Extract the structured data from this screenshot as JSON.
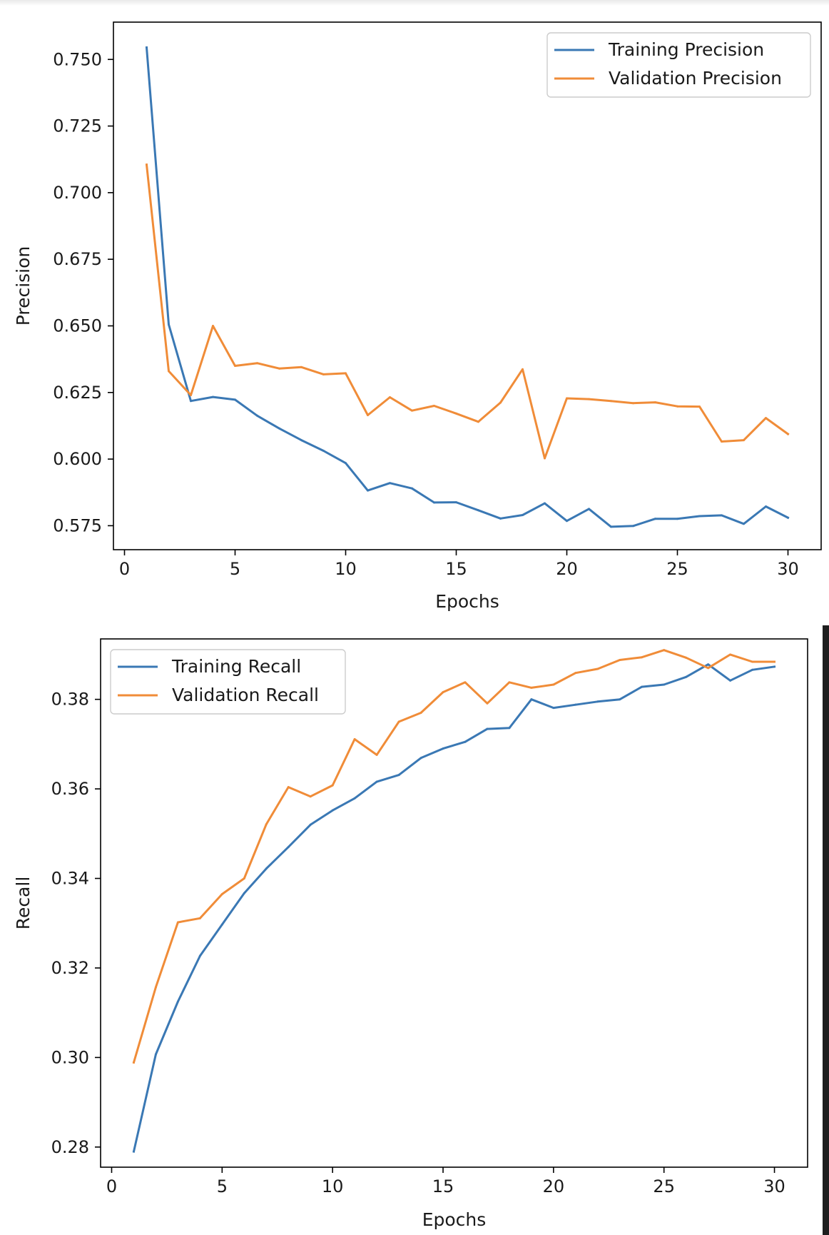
{
  "chart_data": [
    {
      "type": "line",
      "title": "",
      "xlabel": "Epochs",
      "ylabel": "Precision",
      "xlim": [
        -0.5,
        31.5
      ],
      "ylim": [
        0.566,
        0.764
      ],
      "xticks": [
        0,
        5,
        10,
        15,
        20,
        25,
        30
      ],
      "xtick_labels": [
        "0",
        "5",
        "10",
        "15",
        "20",
        "25",
        "30"
      ],
      "yticks": [
        0.575,
        0.6,
        0.625,
        0.65,
        0.675,
        0.7,
        0.725,
        0.75
      ],
      "ytick_labels": [
        "0.575",
        "0.600",
        "0.625",
        "0.650",
        "0.675",
        "0.700",
        "0.725",
        "0.750"
      ],
      "grid": false,
      "legend_position": "top-right",
      "x": [
        1,
        2,
        3,
        4,
        5,
        6,
        7,
        8,
        9,
        10,
        11,
        12,
        13,
        14,
        15,
        16,
        17,
        18,
        19,
        20,
        21,
        22,
        23,
        24,
        25,
        26,
        27,
        28,
        29,
        30
      ],
      "series": [
        {
          "name": "Training Precision",
          "color": "#3a78b4",
          "values": [
            0.7545,
            0.6505,
            0.6218,
            0.6233,
            0.6223,
            0.6163,
            0.6115,
            0.6071,
            0.6031,
            0.5985,
            0.5882,
            0.591,
            0.589,
            0.5837,
            0.5838,
            0.5808,
            0.5777,
            0.579,
            0.5834,
            0.5768,
            0.5813,
            0.5746,
            0.5749,
            0.5776,
            0.5776,
            0.5786,
            0.5789,
            0.5757,
            0.5822,
            0.578
          ]
        },
        {
          "name": "Validation Precision",
          "color": "#f08c38",
          "values": [
            0.7105,
            0.633,
            0.624,
            0.65,
            0.635,
            0.636,
            0.634,
            0.6345,
            0.6318,
            0.6322,
            0.6165,
            0.6232,
            0.6182,
            0.62,
            0.6171,
            0.614,
            0.6212,
            0.6337,
            0.6003,
            0.6228,
            0.6225,
            0.6218,
            0.621,
            0.6213,
            0.6198,
            0.6197,
            0.6066,
            0.6071,
            0.6154,
            0.6094
          ]
        }
      ]
    },
    {
      "type": "line",
      "title": "",
      "xlabel": "Epochs",
      "ylabel": "Recall",
      "xlim": [
        -0.5,
        31.5
      ],
      "ylim": [
        0.2755,
        0.3935
      ],
      "xticks": [
        0,
        5,
        10,
        15,
        20,
        25,
        30
      ],
      "xtick_labels": [
        "0",
        "5",
        "10",
        "15",
        "20",
        "25",
        "30"
      ],
      "yticks": [
        0.28,
        0.3,
        0.32,
        0.34,
        0.36,
        0.38
      ],
      "ytick_labels": [
        "0.28",
        "0.30",
        "0.32",
        "0.34",
        "0.36",
        "0.38"
      ],
      "grid": false,
      "legend_position": "top-left",
      "x": [
        1,
        2,
        3,
        4,
        5,
        6,
        7,
        8,
        9,
        10,
        11,
        12,
        13,
        14,
        15,
        16,
        17,
        18,
        19,
        20,
        21,
        22,
        23,
        24,
        25,
        26,
        27,
        28,
        29,
        30
      ],
      "series": [
        {
          "name": "Training Recall",
          "color": "#3a78b4",
          "values": [
            0.279,
            0.3007,
            0.3125,
            0.3227,
            0.3297,
            0.3367,
            0.3422,
            0.347,
            0.352,
            0.3552,
            0.3579,
            0.3616,
            0.3631,
            0.3669,
            0.369,
            0.3705,
            0.3734,
            0.3736,
            0.38,
            0.3781,
            0.3788,
            0.3795,
            0.38,
            0.3828,
            0.3833,
            0.385,
            0.3878,
            0.3842,
            0.3866,
            0.3873
          ]
        },
        {
          "name": "Validation Recall",
          "color": "#f08c38",
          "values": [
            0.2989,
            0.3157,
            0.3302,
            0.3311,
            0.3365,
            0.34,
            0.3521,
            0.3604,
            0.3583,
            0.3608,
            0.3711,
            0.3676,
            0.375,
            0.377,
            0.3816,
            0.3838,
            0.3791,
            0.3838,
            0.3826,
            0.3833,
            0.3859,
            0.3868,
            0.3888,
            0.3894,
            0.391,
            0.3893,
            0.387,
            0.39,
            0.3884,
            0.3884
          ]
        }
      ]
    }
  ]
}
